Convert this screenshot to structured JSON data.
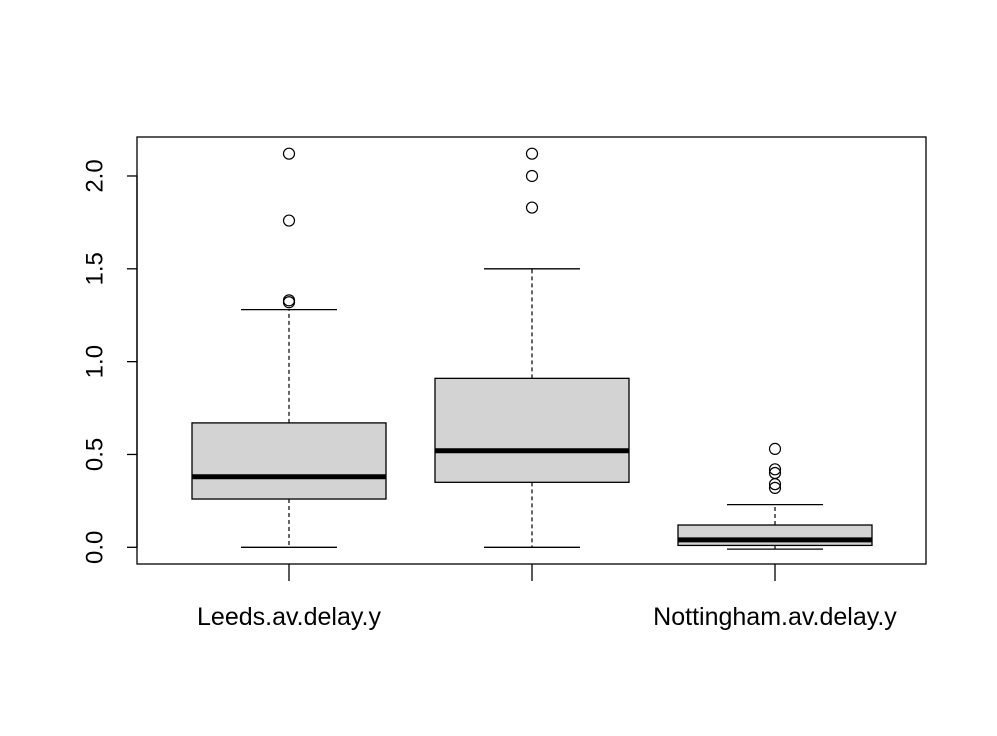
{
  "chart_data": {
    "type": "boxplot",
    "title": "",
    "xlabel": "",
    "ylabel": "",
    "ylim": [
      -0.09,
      2.21
    ],
    "yticks": [
      "0.0",
      "0.5",
      "1.0",
      "1.5",
      "2.0"
    ],
    "ytick_values": [
      0,
      0.5,
      1.0,
      1.5,
      2.0
    ],
    "categories": [
      "Leeds.av.delay.y",
      "",
      "Nottingham.av.delay.y"
    ],
    "boxes": [
      {
        "whisker_low": 0.0,
        "q1": 0.26,
        "median": 0.38,
        "q3": 0.67,
        "whisker_high": 1.28,
        "outliers": [
          1.32,
          1.33,
          1.76,
          2.12
        ]
      },
      {
        "whisker_low": 0.0,
        "q1": 0.35,
        "median": 0.52,
        "q3": 0.91,
        "whisker_high": 1.5,
        "outliers": [
          1.83,
          2.0,
          2.12
        ]
      },
      {
        "whisker_low": -0.01,
        "q1": 0.01,
        "median": 0.04,
        "q3": 0.12,
        "whisker_high": 0.23,
        "outliers": [
          0.32,
          0.34,
          0.4,
          0.42,
          0.53
        ]
      }
    ],
    "box_fill": "#d3d3d3",
    "grid": false,
    "legend": "none"
  }
}
